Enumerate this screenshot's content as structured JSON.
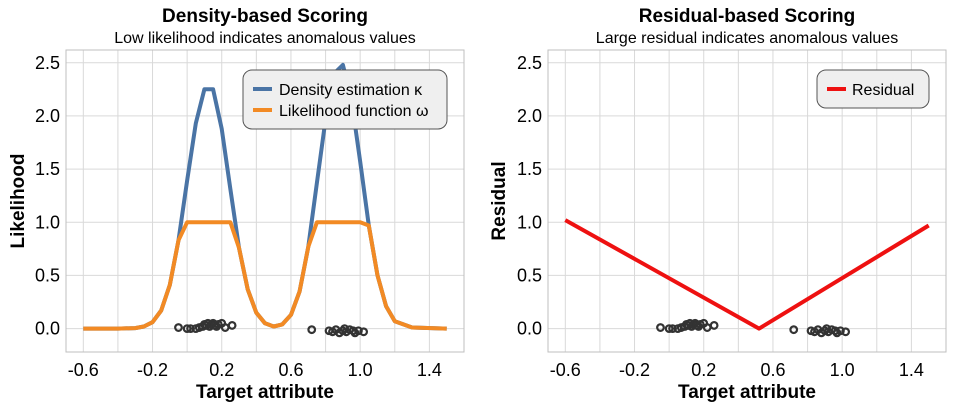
{
  "chart_data": [
    {
      "type": "line",
      "title": "Density-based Scoring",
      "subtitle": "Low likelihood indicates anomalous values",
      "xlabel": "Target attribute",
      "ylabel": "Likelihood",
      "xlim": [
        -0.7,
        1.6
      ],
      "ylim": [
        -0.22,
        2.62
      ],
      "xticks": [
        -0.6,
        -0.2,
        0.2,
        0.6,
        1.0,
        1.4
      ],
      "xtick_labels": [
        "-0.6",
        "-0.2",
        "0.2",
        "0.6",
        "1.0",
        "1.4"
      ],
      "yticks": [
        0.0,
        0.5,
        1.0,
        1.5,
        2.0,
        2.5
      ],
      "ytick_labels": [
        "0.0",
        "0.5",
        "1.0",
        "1.5",
        "2.0",
        "2.5"
      ],
      "grid": true,
      "legend_position": "top-right",
      "series": [
        {
          "name": "Density estimation κ",
          "color": "#4a74a5",
          "x": [
            -0.6,
            -0.4,
            -0.3,
            -0.25,
            -0.2,
            -0.15,
            -0.1,
            -0.05,
            0.0,
            0.05,
            0.1,
            0.15,
            0.2,
            0.25,
            0.3,
            0.35,
            0.4,
            0.45,
            0.5,
            0.55,
            0.6,
            0.65,
            0.7,
            0.75,
            0.8,
            0.85,
            0.9,
            0.95,
            1.0,
            1.05,
            1.1,
            1.15,
            1.2,
            1.3,
            1.5
          ],
          "y": [
            0,
            0,
            0.005,
            0.02,
            0.06,
            0.17,
            0.41,
            0.83,
            1.39,
            1.93,
            2.25,
            2.25,
            1.88,
            1.31,
            0.76,
            0.37,
            0.15,
            0.05,
            0.02,
            0.04,
            0.13,
            0.35,
            0.77,
            1.37,
            1.97,
            2.4,
            2.48,
            2.15,
            1.57,
            0.97,
            0.5,
            0.21,
            0.07,
            0.01,
            0
          ]
        },
        {
          "name": "Likelihood function ω",
          "color": "#f28a24",
          "x": [
            -0.6,
            -0.4,
            -0.3,
            -0.25,
            -0.2,
            -0.15,
            -0.1,
            -0.05,
            0.0,
            0.05,
            0.1,
            0.15,
            0.2,
            0.25,
            0.3,
            0.35,
            0.4,
            0.45,
            0.5,
            0.55,
            0.6,
            0.65,
            0.7,
            0.75,
            0.8,
            0.85,
            0.9,
            0.95,
            1.0,
            1.05,
            1.1,
            1.15,
            1.2,
            1.3,
            1.5
          ],
          "y": [
            0,
            0,
            0.005,
            0.02,
            0.06,
            0.17,
            0.41,
            0.83,
            1.0,
            1.0,
            1.0,
            1.0,
            1.0,
            1.0,
            0.76,
            0.37,
            0.15,
            0.05,
            0.02,
            0.04,
            0.13,
            0.35,
            0.77,
            1.0,
            1.0,
            1.0,
            1.0,
            1.0,
            1.0,
            0.97,
            0.5,
            0.21,
            0.07,
            0.01,
            0
          ]
        }
      ],
      "samples_color": "#333333",
      "samples": [
        [
          -0.05,
          0.01
        ],
        [
          0.0,
          0.0
        ],
        [
          0.02,
          0.0
        ],
        [
          0.05,
          0.0
        ],
        [
          0.07,
          0.01
        ],
        [
          0.09,
          0.02
        ],
        [
          0.1,
          0.04
        ],
        [
          0.11,
          0.03
        ],
        [
          0.12,
          0.05
        ],
        [
          0.13,
          0.02
        ],
        [
          0.14,
          0.04
        ],
        [
          0.15,
          0.05
        ],
        [
          0.16,
          0.03
        ],
        [
          0.17,
          0.02
        ],
        [
          0.18,
          0.04
        ],
        [
          0.2,
          0.05
        ],
        [
          0.22,
          0.01
        ],
        [
          0.26,
          0.03
        ],
        [
          0.72,
          -0.01
        ],
        [
          0.82,
          -0.02
        ],
        [
          0.84,
          -0.03
        ],
        [
          0.86,
          -0.01
        ],
        [
          0.88,
          -0.04
        ],
        [
          0.9,
          -0.02
        ],
        [
          0.91,
          0.0
        ],
        [
          0.92,
          -0.03
        ],
        [
          0.94,
          -0.01
        ],
        [
          0.96,
          -0.02
        ],
        [
          0.97,
          -0.04
        ],
        [
          0.99,
          -0.02
        ],
        [
          1.02,
          -0.03
        ]
      ]
    },
    {
      "type": "line",
      "title": "Residual-based Scoring",
      "subtitle": "Large residual indicates anomalous values",
      "xlabel": "Target attribute",
      "ylabel": "Residual",
      "xlim": [
        -0.7,
        1.6
      ],
      "ylim": [
        -0.22,
        2.62
      ],
      "xticks": [
        -0.6,
        -0.2,
        0.2,
        0.6,
        1.0,
        1.4
      ],
      "xtick_labels": [
        "-0.6",
        "-0.2",
        "0.2",
        "0.6",
        "1.0",
        "1.4"
      ],
      "yticks": [
        0.0,
        0.5,
        1.0,
        1.5,
        2.0,
        2.5
      ],
      "ytick_labels": [
        "0.0",
        "0.5",
        "1.0",
        "1.5",
        "2.0",
        "2.5"
      ],
      "grid": true,
      "legend_position": "top-right",
      "series": [
        {
          "name": "Residual",
          "color": "#ee1111",
          "x": [
            -0.6,
            0.52,
            1.5
          ],
          "y": [
            1.02,
            0.0,
            0.97
          ]
        }
      ],
      "samples_color": "#333333",
      "samples": [
        [
          -0.05,
          0.01
        ],
        [
          0.0,
          0.0
        ],
        [
          0.02,
          0.0
        ],
        [
          0.05,
          0.0
        ],
        [
          0.07,
          0.01
        ],
        [
          0.09,
          0.02
        ],
        [
          0.1,
          0.04
        ],
        [
          0.11,
          0.03
        ],
        [
          0.12,
          0.05
        ],
        [
          0.13,
          0.02
        ],
        [
          0.14,
          0.04
        ],
        [
          0.15,
          0.05
        ],
        [
          0.16,
          0.03
        ],
        [
          0.17,
          0.02
        ],
        [
          0.18,
          0.04
        ],
        [
          0.2,
          0.05
        ],
        [
          0.22,
          0.01
        ],
        [
          0.26,
          0.03
        ],
        [
          0.72,
          -0.01
        ],
        [
          0.82,
          -0.02
        ],
        [
          0.84,
          -0.03
        ],
        [
          0.86,
          -0.01
        ],
        [
          0.88,
          -0.04
        ],
        [
          0.9,
          -0.02
        ],
        [
          0.91,
          0.0
        ],
        [
          0.92,
          -0.03
        ],
        [
          0.94,
          -0.01
        ],
        [
          0.96,
          -0.02
        ],
        [
          0.97,
          -0.04
        ],
        [
          0.99,
          -0.02
        ],
        [
          1.02,
          -0.03
        ]
      ]
    }
  ]
}
